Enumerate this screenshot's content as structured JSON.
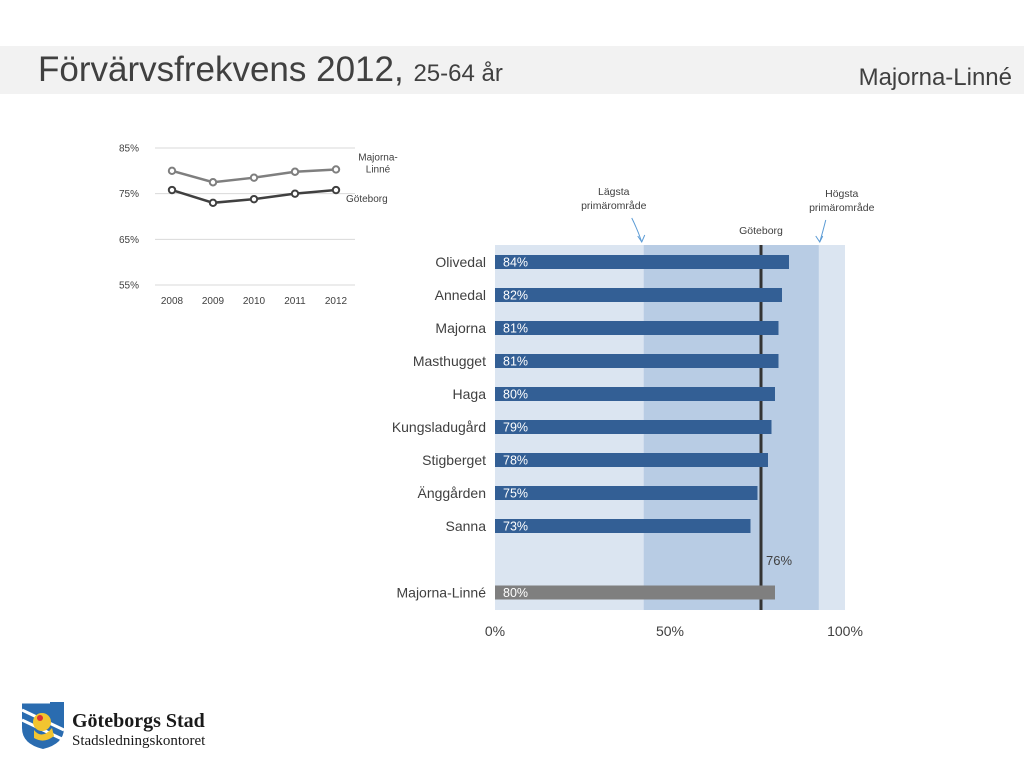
{
  "header": {
    "title_main": "Förvärvsfrekvens 2012,",
    "title_sub": "25-64 år",
    "district": "Majorna-Linné"
  },
  "footer": {
    "org_name": "Göteborgs Stad",
    "org_unit": "Stadsledningskontoret"
  },
  "chart_data": [
    {
      "type": "line",
      "x": [
        "2008",
        "2009",
        "2010",
        "2011",
        "2012"
      ],
      "series": [
        {
          "name": "Majorna-Linné",
          "values": [
            80,
            77.5,
            78.5,
            79.8,
            80.3
          ],
          "color": "#7f7f7f"
        },
        {
          "name": "Göteborg",
          "values": [
            75.8,
            73,
            73.8,
            75,
            75.8
          ],
          "color": "#404040"
        }
      ],
      "y_ticks": [
        "55%",
        "65%",
        "75%",
        "85%"
      ],
      "ylim": [
        55,
        85
      ],
      "grid": true,
      "legend": "labels at line ends"
    },
    {
      "type": "bar",
      "orientation": "horizontal",
      "categories": [
        "Olivedal",
        "Annedal",
        "Majorna",
        "Masthugget",
        "Haga",
        "Kungsladugård",
        "Stigberget",
        "Änggården",
        "Sanna",
        "Majorna-Linné"
      ],
      "values": [
        84,
        82,
        81,
        81,
        80,
        79,
        78,
        75,
        73,
        80
      ],
      "value_labels": [
        "84%",
        "82%",
        "81%",
        "81%",
        "80%",
        "79%",
        "78%",
        "75%",
        "73%",
        "80%"
      ],
      "bar_color": "#335f95",
      "total_color": "#7f7f7f",
      "x_ticks": [
        "0%",
        "50%",
        "100%"
      ],
      "xlim": [
        0,
        100
      ],
      "reference": {
        "label": "Göteborg",
        "value": 76,
        "value_label": "76%"
      },
      "range": {
        "low_label": "Lägsta primärområde",
        "low": 42.5,
        "high_label": "Högsta primärområde",
        "high": 92.5
      },
      "colors": {
        "outer_band": "#dbe5f1",
        "inner_band": "#b8cce4",
        "reference_line": "#333333"
      }
    }
  ]
}
